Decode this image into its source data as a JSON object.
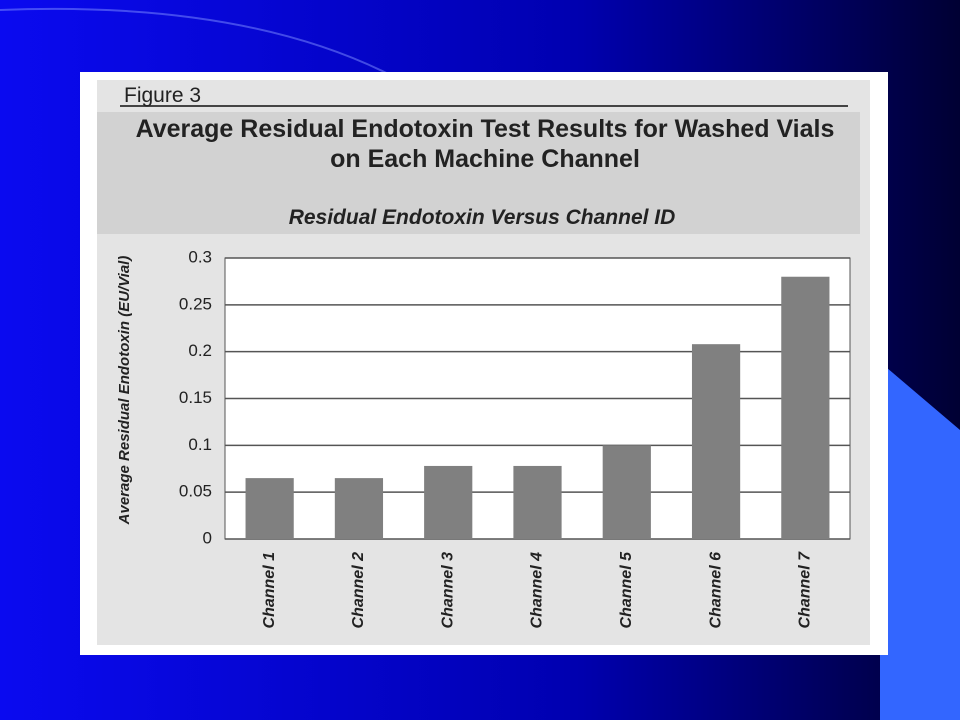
{
  "chart_data": {
    "type": "bar",
    "figure_label": "Figure 3",
    "title": "Average Residual Endotoxin Test Results for Washed Vials on Each Machine Channel",
    "subtitle": "Residual Endotoxin Versus Channel ID",
    "y_label": "Average Residual Endotoxin (EU/Vial)",
    "categories": [
      "Channel 1",
      "Channel 2",
      "Channel 3",
      "Channel 4",
      "Channel 5",
      "Channel 6",
      "Channel 7"
    ],
    "values": [
      0.065,
      0.065,
      0.078,
      0.078,
      0.1,
      0.208,
      0.28
    ],
    "color": "#808080",
    "ylim": [
      0,
      0.3
    ],
    "yticks": [
      0,
      0.05,
      0.1,
      0.15,
      0.2,
      0.25,
      0.3
    ],
    "grid": true
  }
}
